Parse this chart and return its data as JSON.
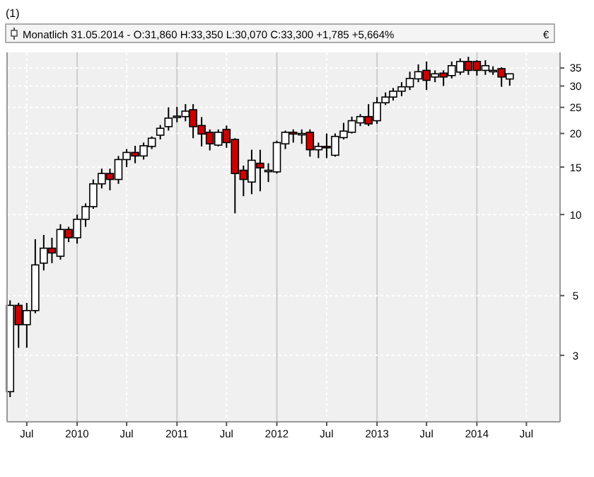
{
  "chart_data": {
    "type": "candlestick",
    "title": "(1)",
    "subtitle": "Monatlich  31.05.2014 - O:31,860 H:33,350 L:30,070 C:33,300 +1,785 +5,664%",
    "annotations": [
      "€"
    ],
    "x": [
      "2009-05",
      "2009-06",
      "2009-07",
      "2009-08",
      "2009-09",
      "2009-10",
      "2009-11",
      "2009-12",
      "2010-01",
      "2010-02",
      "2010-03",
      "2010-04",
      "2010-05",
      "2010-06",
      "2010-07",
      "2010-08",
      "2010-09",
      "2010-10",
      "2010-11",
      "2010-12",
      "2011-01",
      "2011-02",
      "2011-03",
      "2011-04",
      "2011-05",
      "2011-06",
      "2011-07",
      "2011-08",
      "2011-09",
      "2011-10",
      "2011-11",
      "2011-12",
      "2012-01",
      "2012-02",
      "2012-03",
      "2012-04",
      "2012-05",
      "2012-06",
      "2012-07",
      "2012-08",
      "2012-09",
      "2012-10",
      "2012-11",
      "2012-12",
      "2013-01",
      "2013-02",
      "2013-03",
      "2013-04",
      "2013-05",
      "2013-06",
      "2013-07",
      "2013-08",
      "2013-09",
      "2013-10",
      "2013-11",
      "2013-12",
      "2014-01",
      "2014-02",
      "2014-03",
      "2014-04",
      "2014-05"
    ],
    "ohlc": [
      [
        2.2,
        4.8,
        2.1,
        4.6
      ],
      [
        4.6,
        4.7,
        3.2,
        3.9
      ],
      [
        3.9,
        4.7,
        3.2,
        4.4
      ],
      [
        4.4,
        8.1,
        4.3,
        6.5
      ],
      [
        6.6,
        8.4,
        6.2,
        7.5
      ],
      [
        7.5,
        8.2,
        6.6,
        7.2
      ],
      [
        7.0,
        9.2,
        6.8,
        8.8
      ],
      [
        8.8,
        9.0,
        7.9,
        8.2
      ],
      [
        8.2,
        10,
        7.8,
        9.6
      ],
      [
        9.6,
        11,
        9,
        10.7
      ],
      [
        10.7,
        13.5,
        10.5,
        13
      ],
      [
        13,
        14.8,
        12.5,
        14.2
      ],
      [
        14.2,
        14.8,
        12.3,
        13.5
      ],
      [
        13.5,
        16.5,
        13,
        16
      ],
      [
        16,
        17.5,
        15,
        17
      ],
      [
        17,
        18,
        15.5,
        16.5
      ],
      [
        16.5,
        18.5,
        16,
        18
      ],
      [
        17.9,
        19.5,
        17.5,
        19.2
      ],
      [
        19.7,
        21.5,
        19,
        20.9
      ],
      [
        21.2,
        25,
        20.5,
        22.8
      ],
      [
        23.1,
        25.1,
        22,
        23.2
      ],
      [
        23.1,
        25.7,
        22.2,
        24.2
      ],
      [
        24.5,
        25.7,
        19.2,
        21.2
      ],
      [
        21.4,
        23,
        17.9,
        19.9
      ],
      [
        20.2,
        20.7,
        17.3,
        18.3
      ],
      [
        18.1,
        20.7,
        17.9,
        20.2
      ],
      [
        20.7,
        21.4,
        17.7,
        18.5
      ],
      [
        19,
        19.2,
        10.1,
        14.2
      ],
      [
        14.6,
        15.2,
        11.7,
        13.5
      ],
      [
        13.2,
        17.4,
        11.9,
        15.9
      ],
      [
        15.5,
        17.4,
        12.2,
        14.9
      ],
      [
        14.6,
        15.5,
        13.2,
        14.6
      ],
      [
        14.4,
        18.8,
        14.2,
        18.5
      ],
      [
        18.3,
        20.5,
        17.5,
        20.2
      ],
      [
        20.2,
        20.7,
        18.5,
        19.9
      ],
      [
        20,
        20.7,
        18.3,
        20
      ],
      [
        20.2,
        20.7,
        16.4,
        17.4
      ],
      [
        17.4,
        18.5,
        16.2,
        17.9
      ],
      [
        17.9,
        20,
        16.2,
        17.7
      ],
      [
        16.6,
        20,
        16.4,
        19.5
      ],
      [
        19.3,
        21.9,
        19,
        20.4
      ],
      [
        20.2,
        23.1,
        20,
        22.3
      ],
      [
        21.9,
        23.6,
        21.3,
        23.1
      ],
      [
        23.1,
        25.7,
        21.3,
        21.7
      ],
      [
        22.3,
        27.3,
        21.7,
        26
      ],
      [
        26,
        28.4,
        25.5,
        27.3
      ],
      [
        27.3,
        29.5,
        26.5,
        28.7
      ],
      [
        28.7,
        31,
        27.5,
        29.8
      ],
      [
        29.8,
        33.9,
        29,
        32
      ],
      [
        31.9,
        36.1,
        31,
        33.9
      ],
      [
        34.3,
        37,
        29,
        31.5
      ],
      [
        32.4,
        34.3,
        31,
        33.3
      ],
      [
        33.5,
        34.3,
        30,
        32.4
      ],
      [
        32.8,
        37,
        32,
        35.7
      ],
      [
        33.8,
        38,
        33,
        37
      ],
      [
        37,
        38.5,
        33,
        34.3
      ],
      [
        37,
        37.4,
        32.8,
        34.3
      ],
      [
        34.3,
        37.4,
        33,
        35.7
      ],
      [
        34.3,
        35.5,
        33,
        34.3
      ],
      [
        34.8,
        35.2,
        29.8,
        32.4
      ],
      [
        31.86,
        33.35,
        30.07,
        33.3
      ]
    ],
    "colors": [
      "#ffffff",
      "#cc0000",
      "#ffffff",
      "#ffffff",
      "#ffffff",
      "#cc0000",
      "#ffffff",
      "#cc0000",
      "#ffffff",
      "#ffffff",
      "#ffffff",
      "#ffffff",
      "#cc0000",
      "#ffffff",
      "#ffffff",
      "#cc0000",
      "#ffffff",
      "#ffffff",
      "#ffffff",
      "#ffffff",
      "#ffffff",
      "#ffffff",
      "#cc0000",
      "#cc0000",
      "#cc0000",
      "#ffffff",
      "#cc0000",
      "#cc0000",
      "#cc0000",
      "#ffffff",
      "#cc0000",
      "#ffffff",
      "#ffffff",
      "#ffffff",
      "#cc0000",
      "#ffffff",
      "#cc0000",
      "#ffffff",
      "#cc0000",
      "#ffffff",
      "#ffffff",
      "#ffffff",
      "#ffffff",
      "#cc0000",
      "#ffffff",
      "#ffffff",
      "#ffffff",
      "#ffffff",
      "#ffffff",
      "#ffffff",
      "#cc0000",
      "#ffffff",
      "#cc0000",
      "#ffffff",
      "#ffffff",
      "#cc0000",
      "#cc0000",
      "#ffffff",
      "#ffffff",
      "#cc0000",
      "#ffffff"
    ],
    "xlim": [
      "2009-04-20",
      "2014-11-01"
    ],
    "xticks": [
      {
        "value": "2009-07",
        "label": "Jul"
      },
      {
        "value": "2010-01",
        "label": "2010"
      },
      {
        "value": "2010-07",
        "label": "Jul"
      },
      {
        "value": "2011-01",
        "label": "2011"
      },
      {
        "value": "2011-07",
        "label": "Jul"
      },
      {
        "value": "2012-01",
        "label": "2012"
      },
      {
        "value": "2012-07",
        "label": "Jul"
      },
      {
        "value": "2013-01",
        "label": "2013"
      },
      {
        "value": "2013-07",
        "label": "Jul"
      },
      {
        "value": "2014-01",
        "label": "2014"
      },
      {
        "value": "2014-07",
        "label": "Jul"
      }
    ],
    "ylim": [
      1.7,
      40
    ],
    "yticks": [
      3,
      5,
      10,
      15,
      20,
      25,
      30,
      35
    ],
    "log": true,
    "grid": true
  }
}
